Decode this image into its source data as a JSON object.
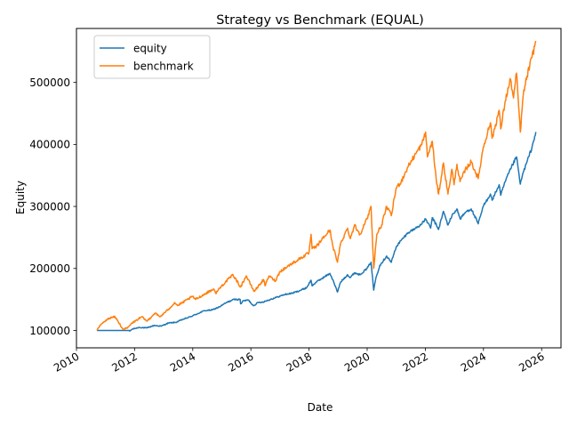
{
  "chart_data": {
    "type": "line",
    "title": "Strategy vs Benchmark (EQUAL)",
    "xlabel": "Date",
    "ylabel": "Equity",
    "xlim": [
      "2010-01-01",
      "2026-09-01"
    ],
    "ylim": [
      72000,
      587000
    ],
    "xticks": [
      "2010",
      "2012",
      "2014",
      "2016",
      "2018",
      "2020",
      "2022",
      "2024",
      "2026"
    ],
    "yticks": [
      100000,
      200000,
      300000,
      400000,
      500000
    ],
    "ytick_labels": [
      "100000",
      "200000",
      "300000",
      "400000",
      "500000"
    ],
    "legend": {
      "placement": "upper-left"
    },
    "grid": false,
    "series": [
      {
        "name": "equity",
        "color": "#1f77b4",
        "points": [
          [
            "2010-09-15",
            100000
          ],
          [
            "2010-12-01",
            100000
          ],
          [
            "2011-03-01",
            100000
          ],
          [
            "2011-06-01",
            100000
          ],
          [
            "2011-09-01",
            100000
          ],
          [
            "2011-10-15",
            100000
          ],
          [
            "2011-11-01",
            99000
          ],
          [
            "2011-12-01",
            102000
          ],
          [
            "2012-03-01",
            105000
          ],
          [
            "2012-06-01",
            104000
          ],
          [
            "2012-09-01",
            108000
          ],
          [
            "2012-12-01",
            107000
          ],
          [
            "2013-03-01",
            112000
          ],
          [
            "2013-06-01",
            113000
          ],
          [
            "2013-09-01",
            118000
          ],
          [
            "2013-12-01",
            122000
          ],
          [
            "2014-03-01",
            127000
          ],
          [
            "2014-06-01",
            132000
          ],
          [
            "2014-09-01",
            133000
          ],
          [
            "2014-12-01",
            138000
          ],
          [
            "2015-03-01",
            145000
          ],
          [
            "2015-06-01",
            150000
          ],
          [
            "2015-08-20",
            150000
          ],
          [
            "2015-08-25",
            143000
          ],
          [
            "2015-10-01",
            148000
          ],
          [
            "2015-12-01",
            149000
          ],
          [
            "2016-02-01",
            140000
          ],
          [
            "2016-04-01",
            145000
          ],
          [
            "2016-06-01",
            146000
          ],
          [
            "2016-09-01",
            150000
          ],
          [
            "2016-12-01",
            154000
          ],
          [
            "2017-03-01",
            158000
          ],
          [
            "2017-06-01",
            160000
          ],
          [
            "2017-09-01",
            164000
          ],
          [
            "2017-12-01",
            169000
          ],
          [
            "2018-01-26",
            181000
          ],
          [
            "2018-02-08",
            172000
          ],
          [
            "2018-04-01",
            178000
          ],
          [
            "2018-06-01",
            183000
          ],
          [
            "2018-09-20",
            192000
          ],
          [
            "2018-10-25",
            182000
          ],
          [
            "2018-12-24",
            162000
          ],
          [
            "2019-02-01",
            178000
          ],
          [
            "2019-04-30",
            190000
          ],
          [
            "2019-06-01",
            185000
          ],
          [
            "2019-07-26",
            193000
          ],
          [
            "2019-10-01",
            190000
          ],
          [
            "2019-12-31",
            200000
          ],
          [
            "2020-02-19",
            210000
          ],
          [
            "2020-03-23",
            165000
          ],
          [
            "2020-04-20",
            185000
          ],
          [
            "2020-06-08",
            205000
          ],
          [
            "2020-09-02",
            220000
          ],
          [
            "2020-10-30",
            210000
          ],
          [
            "2020-12-31",
            235000
          ],
          [
            "2021-03-01",
            245000
          ],
          [
            "2021-06-01",
            258000
          ],
          [
            "2021-09-01",
            265000
          ],
          [
            "2021-11-20",
            272000
          ],
          [
            "2022-01-04",
            280000
          ],
          [
            "2022-03-08",
            265000
          ],
          [
            "2022-03-29",
            282000
          ],
          [
            "2022-06-16",
            263000
          ],
          [
            "2022-08-16",
            292000
          ],
          [
            "2022-10-12",
            270000
          ],
          [
            "2022-12-01",
            285000
          ],
          [
            "2023-02-02",
            296000
          ],
          [
            "2023-03-13",
            280000
          ],
          [
            "2023-06-01",
            292000
          ],
          [
            "2023-07-31",
            296000
          ],
          [
            "2023-10-27",
            272000
          ],
          [
            "2023-12-29",
            300000
          ],
          [
            "2024-03-28",
            320000
          ],
          [
            "2024-04-19",
            310000
          ],
          [
            "2024-07-16",
            335000
          ],
          [
            "2024-08-05",
            318000
          ],
          [
            "2024-09-30",
            340000
          ],
          [
            "2024-12-06",
            360000
          ],
          [
            "2025-02-19",
            380000
          ],
          [
            "2025-04-08",
            336000
          ],
          [
            "2025-05-15",
            355000
          ],
          [
            "2025-07-01",
            372000
          ],
          [
            "2025-09-01",
            395000
          ],
          [
            "2025-10-20",
            420000
          ]
        ]
      },
      {
        "name": "benchmark",
        "color": "#ff7f0e",
        "points": [
          [
            "2010-09-15",
            100000
          ],
          [
            "2010-11-05",
            110000
          ],
          [
            "2011-02-18",
            120000
          ],
          [
            "2011-05-01",
            122000
          ],
          [
            "2011-08-08",
            102000
          ],
          [
            "2011-10-04",
            104000
          ],
          [
            "2011-12-01",
            112000
          ],
          [
            "2012-04-02",
            122000
          ],
          [
            "2012-06-04",
            115000
          ],
          [
            "2012-09-14",
            128000
          ],
          [
            "2012-11-15",
            122000
          ],
          [
            "2013-03-01",
            134000
          ],
          [
            "2013-05-21",
            145000
          ],
          [
            "2013-06-24",
            140000
          ],
          [
            "2013-12-31",
            155000
          ],
          [
            "2014-02-03",
            150000
          ],
          [
            "2014-09-19",
            167000
          ],
          [
            "2014-10-15",
            160000
          ],
          [
            "2014-12-31",
            172000
          ],
          [
            "2015-05-21",
            190000
          ],
          [
            "2015-08-25",
            170000
          ],
          [
            "2015-11-03",
            188000
          ],
          [
            "2016-02-11",
            163000
          ],
          [
            "2016-06-08",
            182000
          ],
          [
            "2016-06-27",
            172000
          ],
          [
            "2016-08-15",
            188000
          ],
          [
            "2016-11-04",
            180000
          ],
          [
            "2016-12-31",
            195000
          ],
          [
            "2017-06-01",
            208000
          ],
          [
            "2017-12-31",
            225000
          ],
          [
            "2018-01-26",
            255000
          ],
          [
            "2018-02-08",
            232000
          ],
          [
            "2018-04-02",
            235000
          ],
          [
            "2018-06-01",
            245000
          ],
          [
            "2018-09-20",
            262000
          ],
          [
            "2018-10-29",
            235000
          ],
          [
            "2018-12-24",
            210000
          ],
          [
            "2019-02-01",
            240000
          ],
          [
            "2019-04-30",
            265000
          ],
          [
            "2019-06-03",
            248000
          ],
          [
            "2019-07-26",
            270000
          ],
          [
            "2019-10-02",
            255000
          ],
          [
            "2019-12-31",
            280000
          ],
          [
            "2020-02-19",
            300000
          ],
          [
            "2020-03-23",
            200000
          ],
          [
            "2020-05-01",
            255000
          ],
          [
            "2020-07-01",
            270000
          ],
          [
            "2020-09-02",
            300000
          ],
          [
            "2020-10-30",
            285000
          ],
          [
            "2020-12-31",
            330000
          ],
          [
            "2021-03-04",
            340000
          ],
          [
            "2021-06-01",
            365000
          ],
          [
            "2021-09-02",
            385000
          ],
          [
            "2021-11-18",
            400000
          ],
          [
            "2022-01-04",
            420000
          ],
          [
            "2022-01-27",
            380000
          ],
          [
            "2022-03-29",
            405000
          ],
          [
            "2022-05-20",
            340000
          ],
          [
            "2022-06-16",
            320000
          ],
          [
            "2022-08-16",
            370000
          ],
          [
            "2022-10-12",
            320000
          ],
          [
            "2022-11-30",
            360000
          ],
          [
            "2022-12-28",
            335000
          ],
          [
            "2023-02-02",
            368000
          ],
          [
            "2023-03-13",
            340000
          ],
          [
            "2023-06-01",
            362000
          ],
          [
            "2023-07-31",
            372000
          ],
          [
            "2023-10-27",
            345000
          ],
          [
            "2023-12-29",
            395000
          ],
          [
            "2024-03-28",
            435000
          ],
          [
            "2024-04-19",
            410000
          ],
          [
            "2024-07-16",
            455000
          ],
          [
            "2024-08-05",
            425000
          ],
          [
            "2024-09-30",
            470000
          ],
          [
            "2024-12-06",
            505000
          ],
          [
            "2025-01-13",
            475000
          ],
          [
            "2025-02-19",
            515000
          ],
          [
            "2025-04-08",
            420000
          ],
          [
            "2025-05-15",
            480000
          ],
          [
            "2025-07-01",
            510000
          ],
          [
            "2025-09-01",
            540000
          ],
          [
            "2025-10-20",
            567000
          ]
        ]
      }
    ]
  }
}
